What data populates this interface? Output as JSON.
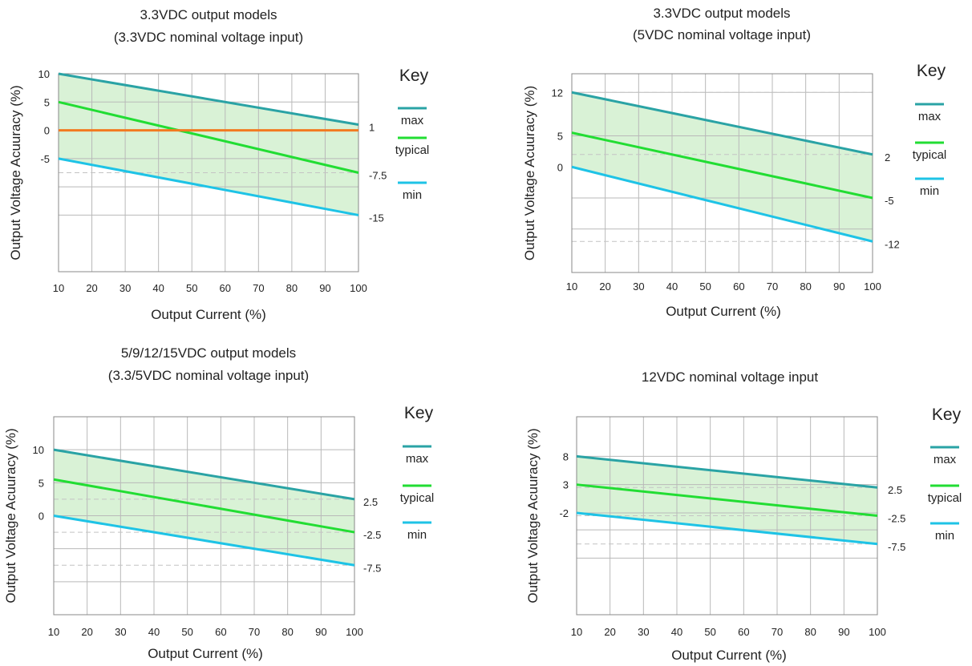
{
  "colors": {
    "max": "#2aa3a5",
    "typical": "#22dd33",
    "min": "#1ec3e6",
    "zero": "#f27a20",
    "band": "#d9f2d6"
  },
  "chart_data": [
    {
      "type": "line",
      "title": [
        "3.3VDC output models",
        "(3.3VDC nominal voltage input)"
      ],
      "xlabel": "Output Current (%)",
      "ylabel": "Output Voltage Acuuracy (%)",
      "xlim": [
        10,
        100
      ],
      "ylim": [
        -25,
        10
      ],
      "x_ticks": [
        "10",
        "20",
        "30",
        "40",
        "50",
        "60",
        "70",
        "80",
        "90",
        "100"
      ],
      "x_tick_values": [
        10,
        20,
        30,
        40,
        50,
        60,
        70,
        80,
        90,
        100
      ],
      "y_ticks": [
        {
          "value": 10,
          "label": "10"
        },
        {
          "value": 5,
          "label": "5"
        },
        {
          "value": 0,
          "label": "0"
        },
        {
          "value": -5,
          "label": "-5"
        }
      ],
      "y_grid": [
        10,
        5,
        0,
        -5,
        -10,
        -15
      ],
      "dashed_lines": [
        -7.5
      ],
      "series": [
        {
          "name": "max",
          "key": "max",
          "x": [
            10,
            100
          ],
          "y": [
            10,
            1
          ]
        },
        {
          "name": "typical",
          "key": "typical",
          "x": [
            10,
            100
          ],
          "y": [
            5,
            -7.5
          ]
        },
        {
          "name": "min",
          "key": "min",
          "x": [
            10,
            100
          ],
          "y": [
            -5,
            -15
          ]
        },
        {
          "name": "",
          "key": "zero",
          "x": [
            10,
            100
          ],
          "y": [
            0,
            0
          ]
        }
      ],
      "end_labels": [
        {
          "value": 1,
          "label": "1"
        },
        {
          "value": -7.5,
          "label": "-7.5"
        },
        {
          "value": -15,
          "label": "-15"
        }
      ],
      "legend": {
        "title": "Key",
        "entries": [
          "max",
          "typical",
          "min"
        ],
        "placement": "right"
      }
    },
    {
      "type": "line",
      "title": [
        "3.3VDC output models",
        "(5VDC nominal voltage input)"
      ],
      "xlabel": "Output Current (%)",
      "ylabel": "Output Voltage Acuuracy (%)",
      "xlim": [
        10,
        100
      ],
      "ylim": [
        -17,
        15
      ],
      "x_ticks": [
        "10",
        "20",
        "30",
        "40",
        "50",
        "60",
        "70",
        "80",
        "90",
        "100"
      ],
      "x_tick_values": [
        10,
        20,
        30,
        40,
        50,
        60,
        70,
        80,
        90,
        100
      ],
      "y_ticks": [
        {
          "value": 12,
          "label": "12"
        },
        {
          "value": 5,
          "label": "5"
        },
        {
          "value": 0,
          "label": "0"
        }
      ],
      "y_grid": [
        12,
        5,
        -5,
        -10
      ],
      "dashed_lines": [
        12,
        2,
        -12
      ],
      "series": [
        {
          "name": "max",
          "key": "max",
          "x": [
            10,
            100
          ],
          "y": [
            12,
            2
          ]
        },
        {
          "name": "typical",
          "key": "typical",
          "x": [
            10,
            100
          ],
          "y": [
            5.5,
            -5
          ]
        },
        {
          "name": "min",
          "key": "min",
          "x": [
            10,
            100
          ],
          "y": [
            0,
            -12
          ]
        }
      ],
      "end_labels": [
        {
          "value": 2,
          "label": "2"
        },
        {
          "value": -5,
          "label": "-5"
        },
        {
          "value": -12,
          "label": "-12"
        }
      ],
      "legend": {
        "title": "Key",
        "entries": [
          "max",
          "typical",
          "min"
        ],
        "placement": "right"
      }
    },
    {
      "type": "line",
      "title": [
        "5/9/12/15VDC output models",
        "(3.3/5VDC nominal voltage input)"
      ],
      "xlabel": "Output Current (%)",
      "ylabel": "Output Voltage Acuuracy (%)",
      "xlim": [
        10,
        100
      ],
      "ylim": [
        -15,
        15
      ],
      "x_ticks": [
        "10",
        "20",
        "30",
        "40",
        "50",
        "60",
        "70",
        "80",
        "90",
        "100"
      ],
      "x_tick_values": [
        10,
        20,
        30,
        40,
        50,
        60,
        70,
        80,
        90,
        100
      ],
      "y_ticks": [
        {
          "value": 10,
          "label": "10"
        },
        {
          "value": 5,
          "label": "5"
        },
        {
          "value": 0,
          "label": "0"
        }
      ],
      "y_grid": [
        10,
        5,
        0,
        -5,
        -10
      ],
      "dashed_lines": [
        2.5,
        -2.5,
        -7.5
      ],
      "series": [
        {
          "name": "max",
          "key": "max",
          "x": [
            10,
            100
          ],
          "y": [
            10,
            2.5
          ]
        },
        {
          "name": "typical",
          "key": "typical",
          "x": [
            10,
            100
          ],
          "y": [
            5.5,
            -2.5
          ]
        },
        {
          "name": "min",
          "key": "min",
          "x": [
            10,
            100
          ],
          "y": [
            0,
            -7.5
          ]
        }
      ],
      "end_labels": [
        {
          "value": 2.5,
          "label": "2.5"
        },
        {
          "value": -2.5,
          "label": "-2.5"
        },
        {
          "value": -7.5,
          "label": "-7.5"
        }
      ],
      "legend": {
        "title": "Key",
        "entries": [
          "max",
          "typical",
          "min"
        ],
        "placement": "right"
      }
    },
    {
      "type": "line",
      "title": [
        "12VDC nominal voltage input"
      ],
      "xlabel": "Output Current (%)",
      "ylabel": "Output Voltage Acuuracy (%)",
      "xlim": [
        10,
        100
      ],
      "ylim": [
        -20,
        15
      ],
      "x_ticks": [
        "10",
        "20",
        "30",
        "40",
        "50",
        "60",
        "70",
        "80",
        "90",
        "100"
      ],
      "x_tick_values": [
        10,
        20,
        30,
        40,
        50,
        60,
        70,
        80,
        90,
        100
      ],
      "y_ticks": [
        {
          "value": 8,
          "label": "8"
        },
        {
          "value": 3,
          "label": "3"
        },
        {
          "value": -2,
          "label": "-2"
        }
      ],
      "y_grid": [
        8,
        3,
        -2,
        -5,
        -10
      ],
      "dashed_lines": [
        2.5,
        -2.5,
        -7.5
      ],
      "series": [
        {
          "name": "max",
          "key": "max",
          "x": [
            10,
            100
          ],
          "y": [
            8,
            2.5
          ]
        },
        {
          "name": "typical",
          "key": "typical",
          "x": [
            10,
            100
          ],
          "y": [
            3,
            -2.5
          ]
        },
        {
          "name": "min",
          "key": "min",
          "x": [
            10,
            100
          ],
          "y": [
            -2,
            -7.5
          ]
        }
      ],
      "end_labels": [
        {
          "value": 2.5,
          "label": "2.5"
        },
        {
          "value": -2.5,
          "label": "-2.5"
        },
        {
          "value": -7.5,
          "label": "-7.5"
        }
      ],
      "legend": {
        "title": "Key",
        "entries": [
          "max",
          "typical",
          "min"
        ],
        "placement": "right"
      }
    }
  ]
}
